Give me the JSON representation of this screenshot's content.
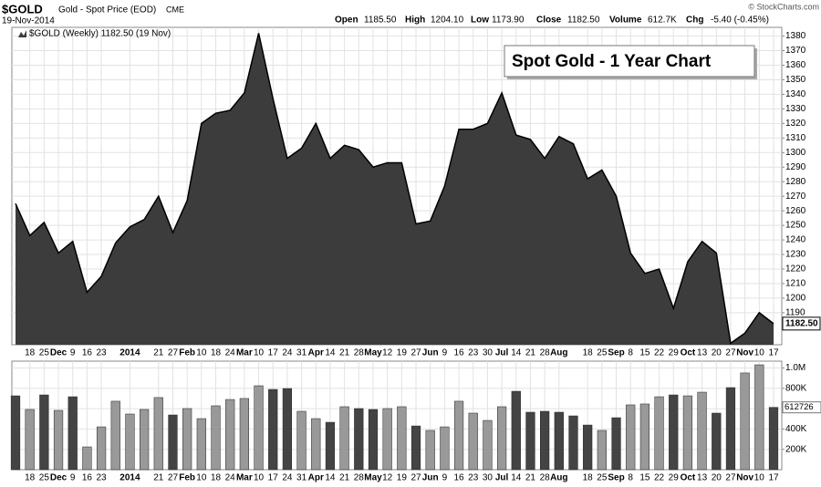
{
  "header": {
    "symbol": "$GOLD",
    "name": "Gold - Spot Price (EOD)",
    "exchange": "CME",
    "date": "19-Nov-2014",
    "source": "© StockCharts.com",
    "stats": [
      {
        "label": "Open",
        "value": "1185.50"
      },
      {
        "label": "High",
        "value": "1204.10"
      },
      {
        "label": "Low",
        "value": "1173.90"
      },
      {
        "label": "Close",
        "value": "1182.50"
      },
      {
        "label": "Volume",
        "value": "612.7K"
      },
      {
        "label": "Chg",
        "value": "-5.40 (-0.45%)"
      }
    ]
  },
  "chart_data": [
    {
      "type": "area",
      "legend": "$GOLD (Weekly) 1182.50 (19 Nov)",
      "annotation": "Spot Gold - 1 Year Chart",
      "color": "#3c3c3c",
      "categories": [
        null,
        "18",
        "25",
        "Dec",
        "9",
        "16",
        "23",
        null,
        "2014",
        null,
        "21",
        "27",
        "Feb",
        "10",
        "18",
        "24",
        "Mar",
        "10",
        "17",
        "24",
        "31",
        "Apr",
        "14",
        "21",
        "28",
        "May",
        "12",
        "19",
        "27",
        "Jun",
        "9",
        "16",
        "23",
        "30",
        "Jul",
        "14",
        "21",
        "28",
        "Aug",
        null,
        "18",
        "25",
        "Sep",
        "8",
        "15",
        "22",
        "29",
        "Oct",
        "13",
        "20",
        "27",
        "Nov",
        "10",
        "17"
      ],
      "values": [
        1265,
        1243,
        1252,
        1231,
        1239,
        1204,
        1215,
        1238,
        1249,
        1254,
        1270,
        1245,
        1267,
        1320,
        1327,
        1329,
        1341,
        1382,
        1337,
        1296,
        1303,
        1320,
        1296,
        1305,
        1302,
        1290,
        1293,
        1293,
        1251,
        1253,
        1277,
        1316,
        1316,
        1320,
        1341,
        1312,
        1309,
        1296,
        1311,
        1306,
        1282,
        1288,
        1270,
        1231,
        1217,
        1220,
        1193,
        1225,
        1239,
        1231,
        1169,
        1176,
        1190,
        1182.5
      ],
      "ylim": [
        1168,
        1386
      ],
      "yticks": [
        1190,
        1200,
        1210,
        1220,
        1230,
        1240,
        1250,
        1260,
        1270,
        1280,
        1290,
        1300,
        1310,
        1320,
        1330,
        1340,
        1350,
        1360,
        1370,
        1380
      ],
      "grid": true
    },
    {
      "type": "bar",
      "categories": [
        null,
        "18",
        "25",
        "Dec",
        "9",
        "16",
        "23",
        null,
        "2014",
        null,
        "21",
        "27",
        "Feb",
        "10",
        "18",
        "24",
        "Mar",
        "10",
        "17",
        "24",
        "31",
        "Apr",
        "14",
        "21",
        "28",
        "May",
        "12",
        "19",
        "27",
        "Jun",
        "9",
        "16",
        "23",
        "30",
        "Jul",
        "14",
        "21",
        "28",
        "Aug",
        null,
        "18",
        "25",
        "Sep",
        "8",
        "15",
        "22",
        "29",
        "Oct",
        "13",
        "20",
        "27",
        "Nov",
        "10",
        "17"
      ],
      "values": [
        726000,
        592000,
        735000,
        583000,
        717000,
        224000,
        421000,
        673000,
        547000,
        592000,
        709000,
        538000,
        601000,
        502000,
        628000,
        690000,
        700000,
        825000,
        789000,
        798000,
        574000,
        502000,
        466000,
        619000,
        601000,
        592000,
        601000,
        619000,
        430000,
        386000,
        421000,
        673000,
        556000,
        484000,
        619000,
        771000,
        565000,
        574000,
        565000,
        529000,
        439000,
        386000,
        511000,
        637000,
        646000,
        717000,
        735000,
        726000,
        762000,
        556000,
        807000,
        951000,
        1031000,
        612726
      ],
      "colors": [
        "#444444",
        "#999999",
        "#444444",
        "#999999",
        "#444444",
        "#999999",
        "#999999",
        "#999999",
        "#999999",
        "#999999",
        "#999999",
        "#444444",
        "#999999",
        "#999999",
        "#999999",
        "#999999",
        "#999999",
        "#999999",
        "#444444",
        "#444444",
        "#999999",
        "#999999",
        "#444444",
        "#999999",
        "#444444",
        "#444444",
        "#999999",
        "#999999",
        "#444444",
        "#999999",
        "#999999",
        "#999999",
        "#999999",
        "#999999",
        "#999999",
        "#444444",
        "#444444",
        "#444444",
        "#444444",
        "#444444",
        "#444444",
        "#999999",
        "#444444",
        "#999999",
        "#999999",
        "#999999",
        "#444444",
        "#999999",
        "#999999",
        "#444444",
        "#444444",
        "#999999",
        "#999999",
        "#444444"
      ],
      "ylim": [
        0,
        1067000
      ],
      "yticks": [
        {
          "value": 200000,
          "label": "200K"
        },
        {
          "value": 400000,
          "label": "400K"
        },
        {
          "value": 600000,
          "label": "600K"
        },
        {
          "value": 800000,
          "label": "800K"
        },
        {
          "value": 1000000,
          "label": "1.0M"
        }
      ],
      "grid": true
    }
  ]
}
